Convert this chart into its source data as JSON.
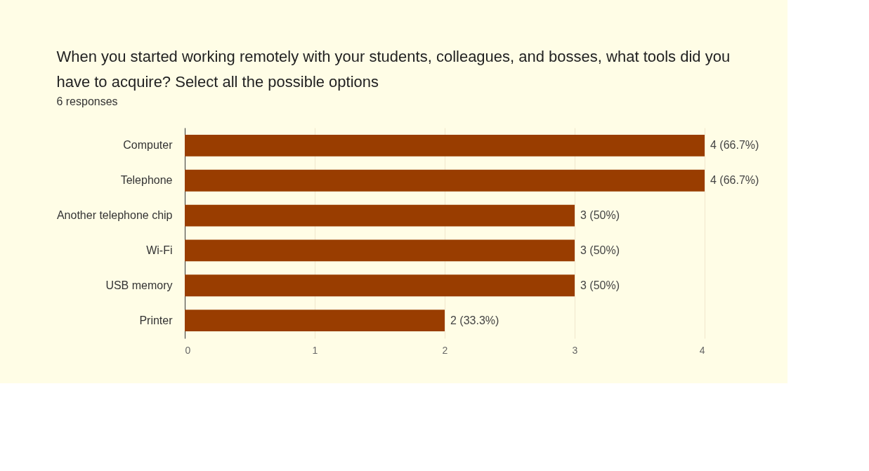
{
  "chart_data": {
    "type": "bar",
    "orientation": "horizontal",
    "title": "When you started working remotely with your students, colleagues, and bosses, what tools did you have to acquire? Select all the possible options",
    "subtitle": "6 responses",
    "categories": [
      "Computer",
      "Telephone",
      "Another telephone chip",
      "Wi-Fi",
      "USB memory",
      "Printer"
    ],
    "values": [
      4,
      4,
      3,
      3,
      3,
      2
    ],
    "value_labels": [
      "4 (66.7%)",
      "4 (66.7%)",
      "3 (50%)",
      "3 (50%)",
      "3 (50%)",
      "2 (33.3%)"
    ],
    "color": "#993d00",
    "xlim": [
      0,
      4
    ],
    "xticks": [
      0,
      1,
      2,
      3,
      4
    ],
    "grid": "x"
  }
}
